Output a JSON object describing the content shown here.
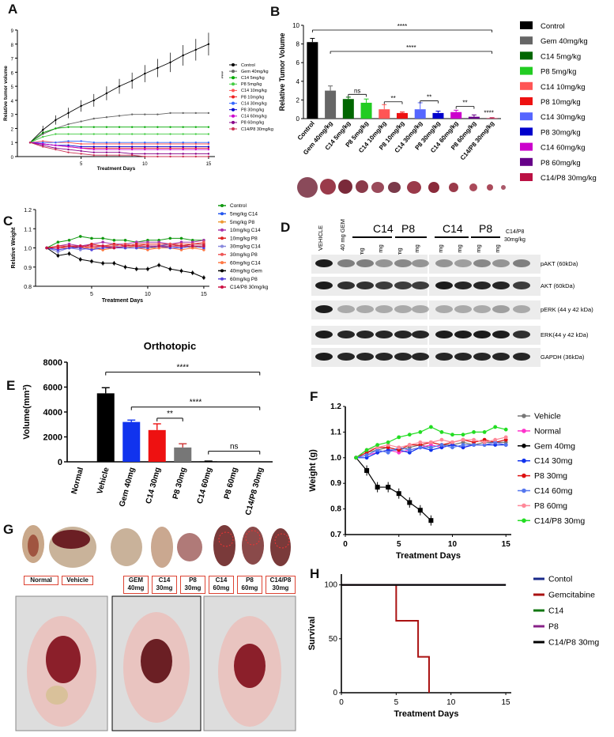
{
  "panels": {
    "A": "A",
    "B": "B",
    "C": "C",
    "D": "D",
    "E": "E",
    "F": "F",
    "G": "G",
    "H": "H"
  },
  "chart_data": [
    {
      "id": "A",
      "type": "line",
      "title": "",
      "xlabel": "Treatment Days",
      "ylabel": "Relative tumor volume",
      "x": [
        1,
        2,
        3,
        4,
        5,
        6,
        7,
        8,
        9,
        10,
        11,
        12,
        13,
        14,
        15
      ],
      "xticks": [
        5,
        10,
        15
      ],
      "yticks": [
        0,
        1,
        2,
        3,
        4,
        5,
        6,
        7,
        8,
        9
      ],
      "ylim": [
        0,
        9
      ],
      "xlim": [
        0,
        15.5
      ],
      "annotation": "****",
      "series": [
        {
          "name": "Control",
          "color": "#000000",
          "values": [
            1.0,
            1.9,
            2.6,
            3.1,
            3.6,
            4.0,
            4.5,
            5.0,
            5.4,
            5.9,
            6.3,
            6.7,
            7.2,
            7.6,
            8.0
          ]
        },
        {
          "name": "Gem 40mg/kg",
          "color": "#666666",
          "values": [
            1.0,
            1.6,
            2.0,
            2.3,
            2.5,
            2.7,
            2.8,
            2.9,
            3.0,
            3.0,
            3.0,
            3.1,
            3.1,
            3.1,
            3.1
          ]
        },
        {
          "name": "C14 5mg/kg",
          "color": "#00aa00",
          "values": [
            1.0,
            1.7,
            2.0,
            2.1,
            2.1,
            2.1,
            2.1,
            2.1,
            2.1,
            2.1,
            2.1,
            2.1,
            2.1,
            2.1,
            2.1
          ]
        },
        {
          "name": "P8 5mg/kg",
          "color": "#44cc44",
          "values": [
            1.0,
            1.4,
            1.6,
            1.6,
            1.6,
            1.6,
            1.6,
            1.6,
            1.6,
            1.6,
            1.6,
            1.6,
            1.6,
            1.6,
            1.6
          ]
        },
        {
          "name": "C14 10mg/kg",
          "color": "#ff5555",
          "values": [
            1.0,
            1.1,
            1.0,
            1.0,
            0.9,
            0.9,
            0.9,
            0.9,
            0.9,
            0.9,
            0.9,
            0.9,
            0.9,
            0.9,
            0.9
          ]
        },
        {
          "name": "P8 10mg/kg",
          "color": "#ee2222",
          "values": [
            1.0,
            0.9,
            0.8,
            0.7,
            0.6,
            0.6,
            0.6,
            0.6,
            0.6,
            0.6,
            0.6,
            0.6,
            0.6,
            0.6,
            0.6
          ]
        },
        {
          "name": "C14 30mg/kg",
          "color": "#3366ff",
          "values": [
            1.0,
            1.0,
            1.0,
            1.1,
            1.1,
            1.0,
            1.0,
            1.0,
            1.0,
            1.0,
            1.0,
            1.0,
            1.0,
            1.0,
            1.0
          ]
        },
        {
          "name": "P8 30mg/kg",
          "color": "#0000cc",
          "values": [
            1.0,
            0.9,
            0.8,
            0.8,
            0.7,
            0.7,
            0.7,
            0.7,
            0.7,
            0.7,
            0.7,
            0.7,
            0.7,
            0.7,
            0.7
          ]
        },
        {
          "name": "C14 60mg/kg",
          "color": "#cc00cc",
          "values": [
            1.0,
            0.9,
            0.8,
            0.7,
            0.6,
            0.5,
            0.5,
            0.5,
            0.5,
            0.5,
            0.5,
            0.5,
            0.5,
            0.5,
            0.5
          ]
        },
        {
          "name": "P8 60mg/kg",
          "color": "#880088",
          "values": [
            1.0,
            0.8,
            0.6,
            0.5,
            0.4,
            0.3,
            0.3,
            0.3,
            0.2,
            0.2,
            0.2,
            0.2,
            0.2,
            0.2,
            0.2
          ]
        },
        {
          "name": "C14/P8  30mg/kg",
          "color": "#cc3355",
          "values": [
            1.0,
            0.7,
            0.5,
            0.3,
            0.2,
            0.1,
            0.1,
            0.1,
            0.1,
            0.0,
            0.0,
            0.0,
            0.0,
            0.0,
            0.0
          ]
        }
      ]
    },
    {
      "id": "B",
      "type": "bar",
      "ylabel": "Relative Tumor Volume",
      "ylim": [
        0,
        10
      ],
      "yticks": [
        0,
        2,
        4,
        6,
        8,
        10
      ],
      "categories": [
        "Control",
        "Gem 40mg/kg",
        "C14 5mg/kg",
        "P8 5mg/kg",
        "C14 10mg/kg",
        "P8 10mg/kg",
        "C14 30mg/kg",
        "P8 30mg/kg",
        "C14 60mg/kg",
        "P8 60mg/kg",
        "C14/P8  30mg/kg"
      ],
      "values": [
        8.2,
        3.0,
        2.1,
        1.7,
        1.0,
        0.6,
        1.0,
        0.6,
        0.7,
        0.2,
        0.05
      ],
      "errors": [
        0.4,
        0.5,
        0.2,
        0.4,
        0.5,
        0.1,
        0.7,
        0.2,
        0.2,
        0.2,
        0.05
      ],
      "colors": [
        "#000000",
        "#666666",
        "#006600",
        "#22cc22",
        "#ff5555",
        "#ee1111",
        "#5566ff",
        "#0000cc",
        "#cc00cc",
        "#660088",
        "#bb1144"
      ],
      "legend": [
        "Control",
        "Gem 40mg/kg",
        "C14 5mg/kg",
        "P8 5mg/kg",
        "C14 10mg/kg",
        "P8 10mg/kg",
        "C14 30mg/kg",
        "P8 30mg/kg",
        "C14 60mg/kg",
        "P8 60mg/kg",
        "C14/P8  30mg/kg"
      ],
      "annotations": [
        "****",
        "****",
        "ns",
        "**",
        "**",
        "**",
        "****"
      ]
    },
    {
      "id": "C",
      "type": "line",
      "xlabel": "Treatment Days",
      "ylabel": "Relative Weight",
      "x": [
        1,
        2,
        3,
        4,
        5,
        6,
        7,
        8,
        9,
        10,
        11,
        12,
        13,
        14,
        15
      ],
      "xticks": [
        5,
        10,
        15
      ],
      "yticks": [
        0.8,
        0.9,
        1.0,
        1.1,
        1.2
      ],
      "ylim": [
        0.8,
        1.2
      ],
      "xlim": [
        0,
        15.5
      ],
      "series": [
        {
          "name": "Control",
          "color": "#119911",
          "values": [
            1.0,
            1.03,
            1.04,
            1.06,
            1.05,
            1.05,
            1.04,
            1.04,
            1.03,
            1.04,
            1.04,
            1.05,
            1.05,
            1.04,
            1.04
          ]
        },
        {
          "name": "5mg/kg C14",
          "color": "#2255ee",
          "values": [
            1.0,
            0.99,
            1.0,
            1.01,
            1.0,
            1.0,
            1.01,
            1.0,
            1.0,
            1.01,
            1.01,
            1.02,
            1.01,
            1.02,
            1.02
          ]
        },
        {
          "name": "5mg/kg P8",
          "color": "#ee9933",
          "values": [
            1.0,
            1.0,
            1.01,
            1.0,
            1.0,
            0.99,
            1.0,
            1.0,
            1.01,
            1.0,
            1.0,
            1.01,
            1.01,
            1.0,
            1.01
          ]
        },
        {
          "name": "10mg/kg C14",
          "color": "#aa33aa",
          "values": [
            1.0,
            1.01,
            1.02,
            1.01,
            1.02,
            1.03,
            1.02,
            1.02,
            1.03,
            1.03,
            1.03,
            1.02,
            1.03,
            1.03,
            1.04
          ]
        },
        {
          "name": "10mg/kg P8",
          "color": "#dd2222",
          "values": [
            1.0,
            1.01,
            1.01,
            1.0,
            1.02,
            1.01,
            1.02,
            1.01,
            1.02,
            1.02,
            1.02,
            1.02,
            1.01,
            1.02,
            1.02
          ]
        },
        {
          "name": "30mg/kg C14",
          "color": "#8888dd",
          "values": [
            1.0,
            0.98,
            1.0,
            0.99,
            1.0,
            1.0,
            1.01,
            1.0,
            1.0,
            1.01,
            1.0,
            1.01,
            1.0,
            1.01,
            1.01
          ]
        },
        {
          "name": "30mg/kg P8",
          "color": "#ee5555",
          "values": [
            1.0,
            1.0,
            1.01,
            1.01,
            1.0,
            1.01,
            1.01,
            1.02,
            1.01,
            1.02,
            1.02,
            1.02,
            1.02,
            1.02,
            1.03
          ]
        },
        {
          "name": "60mg/kg C14",
          "color": "#ff7744",
          "values": [
            1.0,
            1.0,
            1.0,
            1.0,
            1.0,
            0.99,
            1.0,
            1.0,
            1.0,
            0.99,
            1.0,
            1.0,
            0.99,
            1.0,
            0.99
          ]
        },
        {
          "name": "40mg/kg Gem",
          "color": "#000000",
          "values": [
            1.0,
            0.96,
            0.97,
            0.94,
            0.93,
            0.92,
            0.92,
            0.9,
            0.89,
            0.89,
            0.91,
            0.89,
            0.88,
            0.87,
            0.845
          ]
        },
        {
          "name": "60mg/kg P8",
          "color": "#5544dd",
          "values": [
            1.0,
            0.99,
            1.0,
            1.0,
            0.99,
            1.0,
            1.0,
            1.0,
            1.0,
            1.0,
            1.01,
            1.0,
            1.0,
            1.01,
            1.0
          ]
        },
        {
          "name": "C14/P8  30mg/kg",
          "color": "#cc1144",
          "values": [
            1.0,
            1.0,
            1.01,
            1.01,
            1.01,
            1.01,
            1.0,
            1.01,
            1.01,
            1.01,
            1.01,
            1.01,
            1.01,
            1.01,
            1.01
          ]
        }
      ]
    },
    {
      "id": "E",
      "type": "bar",
      "title": "Orthotopic",
      "ylabel": "Volume(mm³)",
      "ylim": [
        0,
        8000
      ],
      "yticks": [
        0,
        2000,
        4000,
        6000,
        8000
      ],
      "categories": [
        "Normal",
        "Vehicle",
        "Gem 40mg",
        "C14 30mg",
        "P8 30mg",
        "C14 60mg",
        "P8 60mg",
        "C14/P8  30mg"
      ],
      "values": [
        0,
        5500,
        3200,
        2550,
        1150,
        40,
        0,
        0
      ],
      "errors": [
        0,
        450,
        150,
        500,
        300,
        20,
        0,
        0
      ],
      "colors": [
        "#000000",
        "#000000",
        "#1133ee",
        "#ee1111",
        "#777777",
        "#000000",
        "#000000",
        "#000000"
      ],
      "annotations": [
        "****",
        "****",
        "**",
        "ns"
      ]
    },
    {
      "id": "F",
      "type": "line",
      "xlabel": "Treatment Days",
      "ylabel": "Weight (g)",
      "xticks": [
        0,
        5,
        10,
        15
      ],
      "yticks": [
        0.7,
        0.8,
        0.9,
        1.0,
        1.1,
        1.2
      ],
      "ylim": [
        0.7,
        1.2
      ],
      "xlim": [
        0,
        15.5
      ],
      "series": [
        {
          "name": "Vehicle",
          "color": "#777777",
          "x": [
            1,
            2,
            3,
            4,
            5,
            6,
            7,
            8,
            9,
            10,
            11,
            12,
            13,
            14,
            15
          ],
          "values": [
            1.0,
            1.02,
            1.03,
            1.04,
            1.03,
            1.04,
            1.05,
            1.04,
            1.05,
            1.05,
            1.06,
            1.05,
            1.06,
            1.06,
            1.06
          ]
        },
        {
          "name": "Normal",
          "color": "#ff33cc",
          "x": [
            1,
            2,
            3,
            4,
            5,
            6,
            7,
            8,
            9,
            10,
            11,
            12,
            13,
            14,
            15
          ],
          "values": [
            1.0,
            1.01,
            1.02,
            1.03,
            1.02,
            1.03,
            1.04,
            1.05,
            1.04,
            1.05,
            1.04,
            1.05,
            1.05,
            1.06,
            1.05
          ]
        },
        {
          "name": "Gem 40mg",
          "color": "#000000",
          "x": [
            1,
            2,
            3,
            4,
            5,
            6,
            7,
            8
          ],
          "values": [
            1.0,
            0.95,
            0.885,
            0.885,
            0.86,
            0.825,
            0.795,
            0.755
          ]
        },
        {
          "name": "C14 30mg",
          "color": "#1133ee",
          "x": [
            1,
            2,
            3,
            4,
            5,
            6,
            7,
            8,
            9,
            10,
            11,
            12,
            13,
            14,
            15
          ],
          "values": [
            1.0,
            1.0,
            1.02,
            1.03,
            1.03,
            1.02,
            1.04,
            1.03,
            1.04,
            1.05,
            1.04,
            1.05,
            1.05,
            1.05,
            1.05
          ]
        },
        {
          "name": "P8 30mg",
          "color": "#dd1111",
          "x": [
            1,
            2,
            3,
            4,
            5,
            6,
            7,
            8,
            9,
            10,
            11,
            12,
            13,
            14,
            15
          ],
          "values": [
            1.0,
            1.02,
            1.04,
            1.04,
            1.03,
            1.05,
            1.05,
            1.06,
            1.05,
            1.06,
            1.07,
            1.06,
            1.07,
            1.06,
            1.07
          ]
        },
        {
          "name": "C14 60mg",
          "color": "#5577ee",
          "x": [
            1,
            2,
            3,
            4,
            5,
            6,
            7,
            8,
            9,
            10,
            11,
            12,
            13,
            14,
            15
          ],
          "values": [
            1.0,
            1.01,
            1.03,
            1.02,
            1.04,
            1.03,
            1.04,
            1.04,
            1.05,
            1.04,
            1.05,
            1.05,
            1.05,
            1.06,
            1.05
          ]
        },
        {
          "name": "P8 60mg",
          "color": "#ff8899",
          "x": [
            1,
            2,
            3,
            4,
            5,
            6,
            7,
            8,
            9,
            10,
            11,
            12,
            13,
            14,
            15
          ],
          "values": [
            1.0,
            1.03,
            1.04,
            1.05,
            1.04,
            1.05,
            1.06,
            1.06,
            1.07,
            1.06,
            1.07,
            1.07,
            1.06,
            1.07,
            1.08
          ]
        },
        {
          "name": "C14/P8  30mg",
          "color": "#22dd22",
          "x": [
            1,
            2,
            3,
            4,
            5,
            6,
            7,
            8,
            9,
            10,
            11,
            12,
            13,
            14,
            15
          ],
          "values": [
            1.0,
            1.03,
            1.05,
            1.06,
            1.08,
            1.09,
            1.1,
            1.12,
            1.1,
            1.09,
            1.09,
            1.1,
            1.1,
            1.12,
            1.11
          ]
        }
      ]
    },
    {
      "id": "H",
      "type": "line",
      "xlabel": "Treatment Days",
      "ylabel": "Survival",
      "xticks": [
        0,
        5,
        10,
        15
      ],
      "yticks": [
        0,
        50,
        100
      ],
      "ylim": [
        0,
        110
      ],
      "xlim": [
        0,
        15.5
      ],
      "series": [
        {
          "name": "Contol",
          "color": "#1a2a8a",
          "x": [
            0,
            15
          ],
          "values": [
            100,
            100
          ]
        },
        {
          "name": "Gemcitabine",
          "color": "#aa1111",
          "x": [
            0,
            5,
            5,
            7,
            7,
            8,
            8
          ],
          "values": [
            100,
            100,
            66.7,
            66.7,
            33.3,
            33.3,
            0
          ]
        },
        {
          "name": "C14",
          "color": "#117711",
          "x": [
            0,
            15
          ],
          "values": [
            100,
            100
          ]
        },
        {
          "name": "P8",
          "color": "#882288",
          "x": [
            0,
            15
          ],
          "values": [
            100,
            100
          ]
        },
        {
          "name": "C14/P8  30mg",
          "color": "#000000",
          "x": [
            0,
            15
          ],
          "values": [
            100,
            100
          ]
        }
      ]
    }
  ],
  "blot": {
    "lanes": [
      "VEHICLE",
      "40 mg GEM",
      "5 mg",
      "10 mg",
      "5 mg",
      "10 mg",
      "30 mg",
      "60 mg",
      "30 mg",
      "60 mg",
      "C14/P8\n30mg/kg"
    ],
    "groups": [
      "C14",
      "P8",
      "C14",
      "P8"
    ],
    "last_lane_line1": "C14/P8",
    "last_lane_line2": "30mg/kg",
    "rows": [
      "pAKT (60kDa)",
      "AKT (60kDa)",
      "pERK (44 y 42 kDa)",
      "ERK(44 y 42 kDa)",
      "GAPDH (36kDa)"
    ]
  },
  "photos": {
    "labels": [
      "Normal",
      "Vehicle",
      "GEM 40mg",
      "C14 30mg",
      "P8 30mg",
      "C14 60mg",
      "P8 60mg",
      "C14/P8 30mg"
    ]
  }
}
